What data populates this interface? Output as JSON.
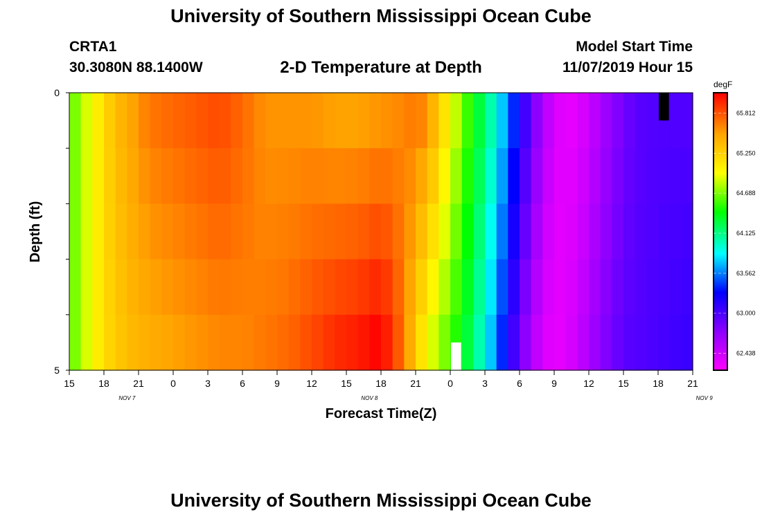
{
  "header": {
    "title": "University of Southern Mississippi Ocean Cube",
    "station": "CRTA1",
    "coords": "30.3080N 88.1400W",
    "chart_title": "2-D Temperature at Depth",
    "model_start_label": "Model Start Time",
    "model_start_value": "11/07/2019 Hour 15"
  },
  "footer": {
    "title": "University of Southern Mississippi Ocean Cube"
  },
  "chart_data": {
    "type": "heatmap",
    "title": "2-D Temperature at Depth",
    "xlabel": "Forecast Time(Z)",
    "ylabel": "Depth (ft)",
    "ylim": [
      0,
      5
    ],
    "y_ticks": [
      "0",
      "5"
    ],
    "x_tick_labels": [
      "15",
      "18",
      "21",
      "0",
      "3",
      "6",
      "9",
      "12",
      "15",
      "18",
      "21",
      "0",
      "3",
      "6",
      "9",
      "12",
      "15",
      "18",
      "21"
    ],
    "date_labels": [
      {
        "label": "NOV  7",
        "at_hour": 5
      },
      {
        "label": "NOV  8",
        "at_hour": 26
      },
      {
        "label": "NOV  9",
        "at_hour": 55
      }
    ],
    "hours": 54,
    "depth_levels": 5,
    "colorbar": {
      "unit": "degF",
      "min": 62.2,
      "max": 66.1,
      "ticks": [
        "62.438",
        "63.000",
        "63.562",
        "64.125",
        "64.688",
        "65.250",
        "65.812"
      ],
      "colors": [
        "#ff00ff",
        "#8c00ff",
        "#0000ff",
        "#00ffff",
        "#00ff00",
        "#ffff00",
        "#ffa500",
        "#ff0000"
      ]
    },
    "temperature_profile_surface": [
      [
        0,
        64.6
      ],
      [
        1,
        64.8
      ],
      [
        2,
        65.0
      ],
      [
        3,
        65.2
      ],
      [
        4,
        65.4
      ],
      [
        5,
        65.5
      ],
      [
        6,
        65.6
      ],
      [
        7,
        65.7
      ],
      [
        9,
        65.75
      ],
      [
        11,
        65.8
      ],
      [
        13,
        65.85
      ],
      [
        15,
        65.75
      ],
      [
        17,
        65.6
      ],
      [
        19,
        65.6
      ],
      [
        21,
        65.6
      ],
      [
        23,
        65.55
      ],
      [
        25,
        65.55
      ],
      [
        27,
        65.6
      ],
      [
        29,
        65.65
      ],
      [
        30,
        65.7
      ],
      [
        31,
        65.6
      ],
      [
        32,
        65.3
      ],
      [
        33,
        65.0
      ],
      [
        34,
        64.7
      ],
      [
        35,
        64.4
      ],
      [
        36,
        64.2
      ],
      [
        37,
        63.9
      ],
      [
        38,
        63.6
      ],
      [
        39,
        63.2
      ],
      [
        40,
        62.9
      ],
      [
        41,
        62.6
      ],
      [
        42,
        62.4
      ],
      [
        43,
        62.3
      ],
      [
        44,
        62.35
      ],
      [
        45,
        62.45
      ],
      [
        46,
        62.6
      ],
      [
        47,
        62.75
      ],
      [
        48,
        62.85
      ],
      [
        49,
        62.95
      ],
      [
        51,
        63.0
      ],
      [
        53,
        63.0
      ],
      [
        54,
        63.0
      ]
    ],
    "temperature_profile_bottom": [
      [
        0,
        64.6
      ],
      [
        1,
        64.8
      ],
      [
        2,
        65.0
      ],
      [
        3,
        65.2
      ],
      [
        4,
        65.3
      ],
      [
        5,
        65.4
      ],
      [
        6,
        65.45
      ],
      [
        7,
        65.5
      ],
      [
        9,
        65.55
      ],
      [
        11,
        65.6
      ],
      [
        13,
        65.65
      ],
      [
        15,
        65.65
      ],
      [
        17,
        65.7
      ],
      [
        19,
        65.75
      ],
      [
        21,
        65.85
      ],
      [
        23,
        65.95
      ],
      [
        25,
        66.0
      ],
      [
        26,
        66.05
      ],
      [
        27,
        66.1
      ],
      [
        28,
        65.9
      ],
      [
        29,
        65.7
      ],
      [
        30,
        65.3
      ],
      [
        31,
        65.0
      ],
      [
        32,
        64.8
      ],
      [
        33,
        64.6
      ],
      [
        34,
        64.4
      ],
      [
        35,
        64.2
      ],
      [
        36,
        63.9
      ],
      [
        37,
        63.6
      ],
      [
        38,
        63.2
      ],
      [
        39,
        62.9
      ],
      [
        40,
        62.6
      ],
      [
        41,
        62.4
      ],
      [
        42,
        62.3
      ],
      [
        43,
        62.35
      ],
      [
        44,
        62.45
      ],
      [
        45,
        62.6
      ],
      [
        46,
        62.75
      ],
      [
        47,
        62.85
      ],
      [
        48,
        62.95
      ],
      [
        50,
        63.0
      ],
      [
        54,
        63.1
      ]
    ],
    "missing_markers": [
      {
        "hour": 51,
        "depth_from": 0,
        "depth_to": 0.5,
        "color": "#000000"
      },
      {
        "hour": 33,
        "depth_from": 4.5,
        "depth_to": 5,
        "color": "#ffffff"
      }
    ]
  }
}
